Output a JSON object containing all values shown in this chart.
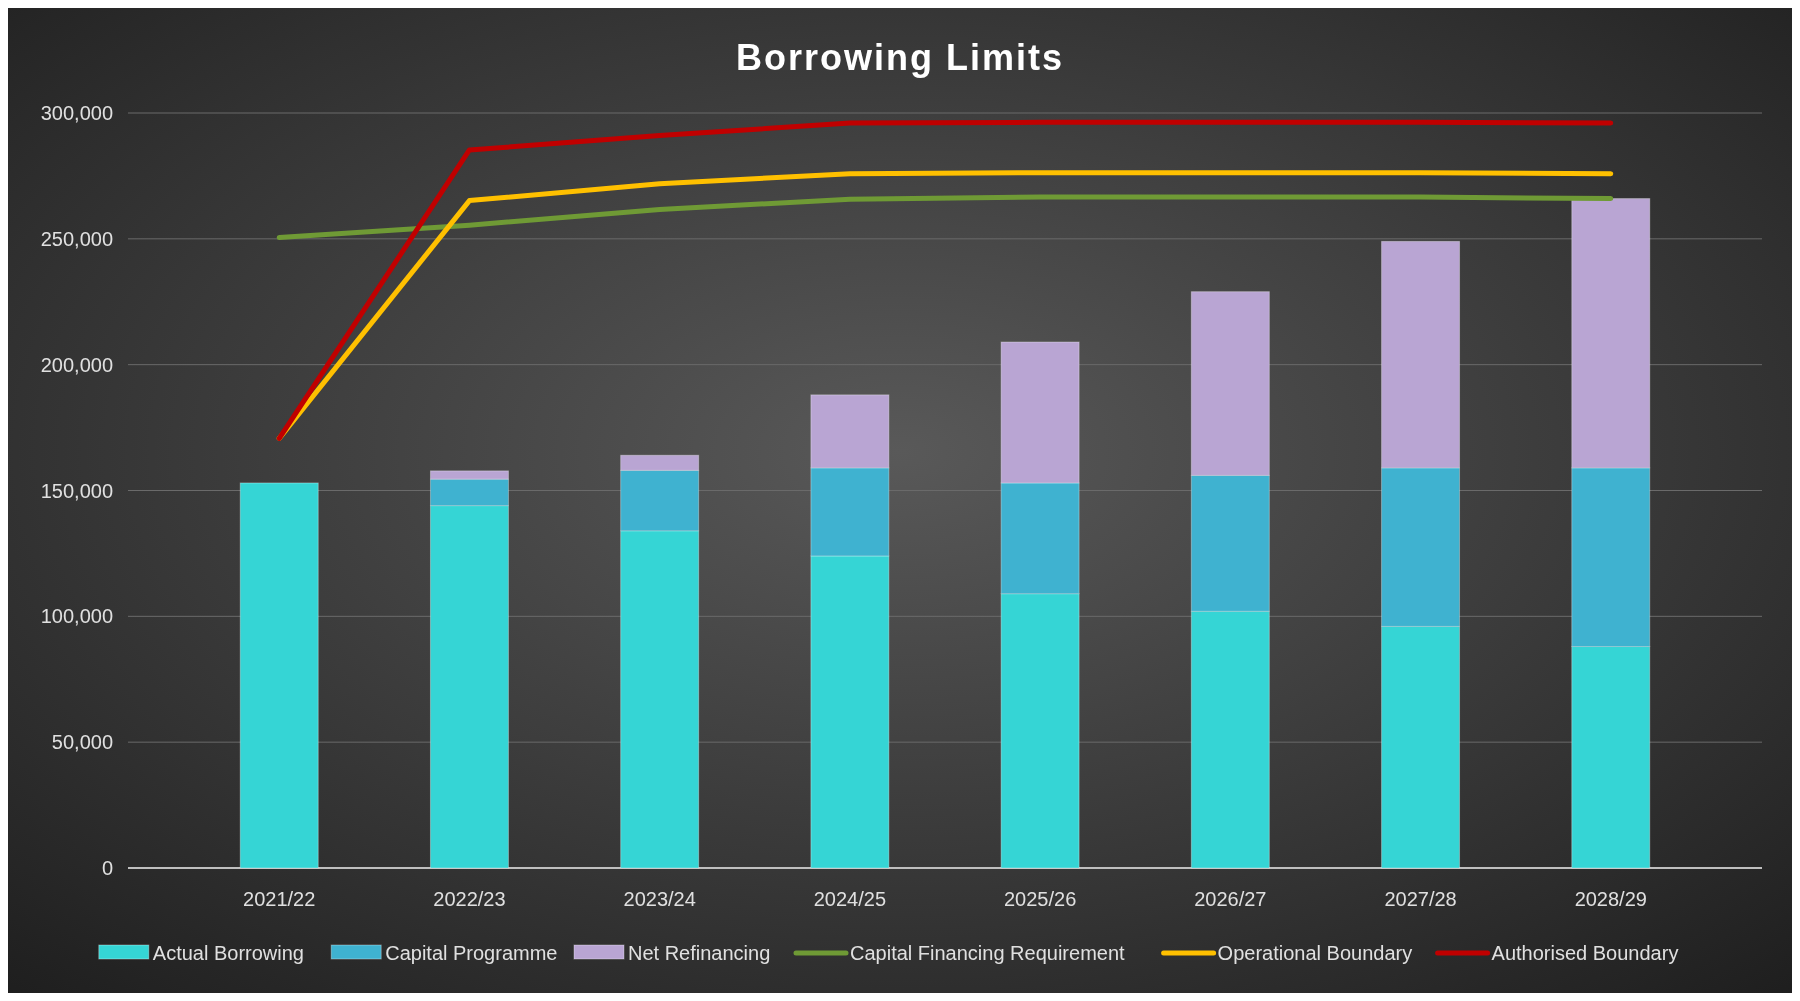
{
  "chart_data": {
    "type": "bar",
    "title": "Borrowing Limits",
    "stacked": true,
    "categories": [
      "2021/22",
      "2022/23",
      "2023/24",
      "2024/25",
      "2025/26",
      "2026/27",
      "2027/28",
      "2028/29"
    ],
    "series": [
      {
        "name": "Actual Borrowing",
        "color": "#35d5d5",
        "values": [
          153000,
          144000,
          134000,
          124000,
          109000,
          102000,
          96000,
          88000
        ]
      },
      {
        "name": "Capital Programme",
        "color": "#3fb2d0",
        "values": [
          null,
          10500,
          24000,
          35000,
          44000,
          54000,
          63000,
          71000
        ]
      },
      {
        "name": "Net Refinancing",
        "color": "#b9a5d3",
        "values": [
          null,
          3300,
          6000,
          29000,
          56000,
          73000,
          90000,
          107000
        ]
      },
      {
        "name": "Capital Financing Requirement",
        "type": "line",
        "color": "#6f9a35",
        "values": [
          250500,
          255400,
          261700,
          265700,
          266600,
          266600,
          266600,
          266000
        ]
      },
      {
        "name": "Operational Boundary",
        "type": "line",
        "color": "#ffc000",
        "values": [
          170700,
          265200,
          271900,
          275900,
          276300,
          276300,
          276300,
          275900
        ]
      },
      {
        "name": "Authorised Boundary",
        "type": "line",
        "color": "#c00000",
        "values": [
          170700,
          285300,
          291100,
          296000,
          296300,
          296300,
          296300,
          296000
        ]
      }
    ],
    "ylim": [
      0,
      300000
    ],
    "yticks": [
      {
        "value": 0,
        "label": "0"
      },
      {
        "value": 50000,
        "label": "50,000"
      },
      {
        "value": 100000,
        "label": "100,000"
      },
      {
        "value": 150000,
        "label": "150,000"
      },
      {
        "value": 200000,
        "label": "200,000"
      },
      {
        "value": 250000,
        "label": "250,000"
      },
      {
        "value": 300000,
        "label": "300,000"
      }
    ],
    "grid": "y",
    "legend": "bottom"
  }
}
